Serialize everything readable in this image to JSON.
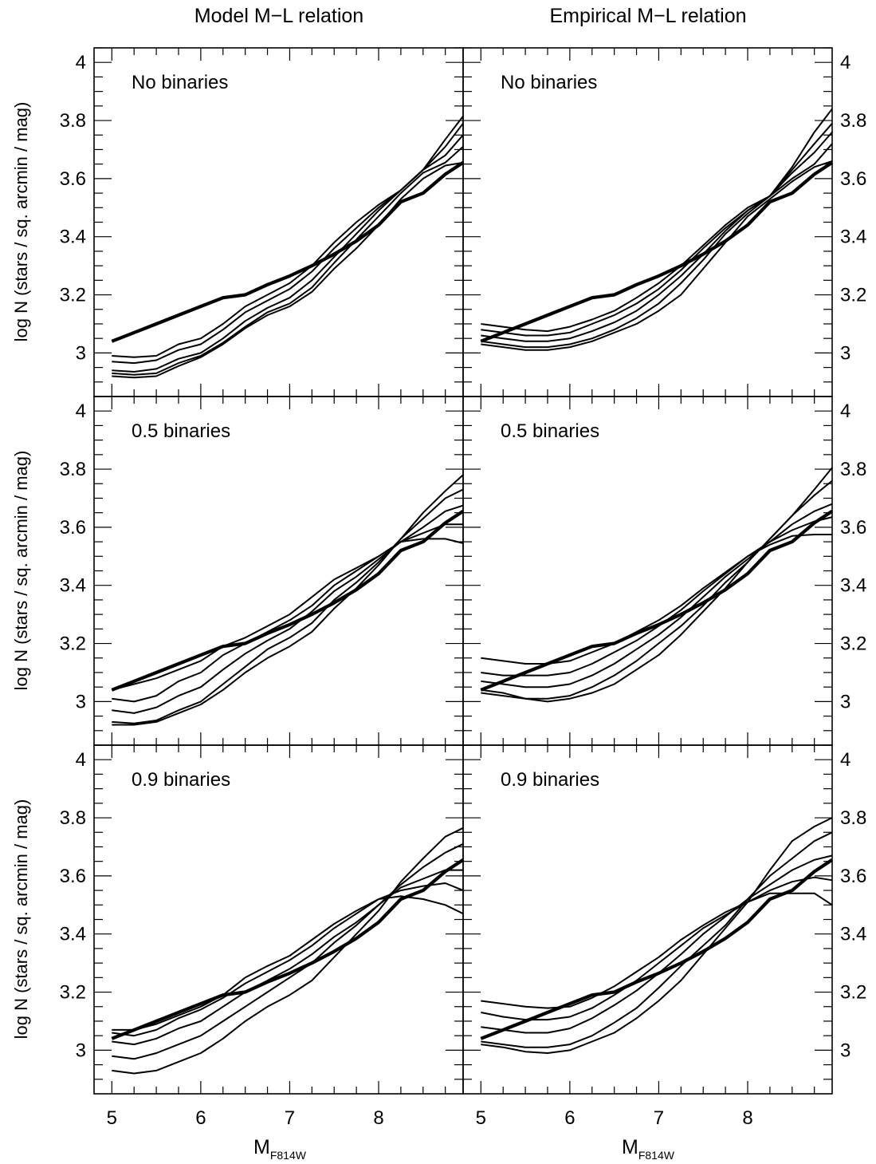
{
  "figure": {
    "column_titles": [
      "Model M−L relation",
      "Empirical M−L relation"
    ],
    "row_labels": [
      "No binaries",
      "0.5 binaries",
      "0.9 binaries"
    ],
    "ylabel": "log N (stars / sq. arcmin / mag)",
    "xlabel": {
      "main": "M",
      "sub": "F814W"
    }
  },
  "chart_data": [
    {
      "type": "line",
      "column": "Model M−L relation",
      "panel_label": "No binaries",
      "x": [
        5.0,
        5.25,
        5.5,
        5.75,
        6.0,
        6.25,
        6.5,
        6.75,
        7.0,
        7.25,
        7.5,
        7.75,
        8.0,
        8.25,
        8.5,
        8.75,
        8.95
      ],
      "xlim": [
        4.8,
        8.95
      ],
      "ylim": [
        2.85,
        4.05
      ],
      "xticks": [
        5,
        6,
        7,
        8
      ],
      "yticks_left": [
        "3",
        "3.2",
        "3.4",
        "3.6",
        "3.8",
        "4"
      ],
      "yticks_right": [],
      "observed": [
        3.04,
        3.07,
        3.1,
        3.13,
        3.16,
        3.19,
        3.2,
        3.235,
        3.265,
        3.3,
        3.34,
        3.385,
        3.44,
        3.52,
        3.55,
        3.615,
        3.655
      ],
      "models": [
        [
          2.99,
          2.985,
          2.99,
          3.03,
          3.05,
          3.1,
          3.16,
          3.2,
          3.24,
          3.3,
          3.38,
          3.45,
          3.51,
          3.56,
          3.63,
          3.735,
          3.815
        ],
        [
          2.97,
          2.965,
          2.975,
          3.01,
          3.03,
          3.08,
          3.14,
          3.18,
          3.22,
          3.28,
          3.36,
          3.43,
          3.5,
          3.56,
          3.63,
          3.71,
          3.79
        ],
        [
          2.94,
          2.935,
          2.945,
          2.98,
          3.0,
          3.05,
          3.11,
          3.155,
          3.19,
          3.25,
          3.33,
          3.41,
          3.49,
          3.56,
          3.63,
          3.68,
          3.75
        ],
        [
          2.93,
          2.925,
          2.93,
          2.965,
          2.99,
          3.035,
          3.09,
          3.14,
          3.17,
          3.225,
          3.31,
          3.39,
          3.47,
          3.55,
          3.62,
          3.655,
          3.71
        ],
        [
          2.92,
          2.915,
          2.92,
          2.955,
          2.985,
          3.03,
          3.085,
          3.13,
          3.16,
          3.21,
          3.29,
          3.36,
          3.44,
          3.53,
          3.6,
          3.645,
          3.655
        ]
      ]
    },
    {
      "type": "line",
      "column": "Empirical M−L relation",
      "panel_label": "No binaries",
      "x": [
        5.0,
        5.25,
        5.5,
        5.75,
        6.0,
        6.25,
        6.5,
        6.75,
        7.0,
        7.25,
        7.5,
        7.75,
        8.0,
        8.25,
        8.5,
        8.75,
        8.95
      ],
      "xlim": [
        4.8,
        8.95
      ],
      "ylim": [
        2.85,
        4.05
      ],
      "xticks": [
        5,
        6,
        7,
        8
      ],
      "yticks_left": [],
      "yticks_right": [
        "3",
        "3.2",
        "3.4",
        "3.6",
        "3.8",
        "4"
      ],
      "observed": [
        3.04,
        3.07,
        3.1,
        3.13,
        3.16,
        3.19,
        3.2,
        3.235,
        3.265,
        3.3,
        3.34,
        3.385,
        3.44,
        3.52,
        3.55,
        3.615,
        3.655
      ],
      "models": [
        [
          3.1,
          3.09,
          3.08,
          3.075,
          3.09,
          3.115,
          3.145,
          3.19,
          3.24,
          3.3,
          3.37,
          3.44,
          3.5,
          3.54,
          3.64,
          3.76,
          3.84
        ],
        [
          3.08,
          3.07,
          3.06,
          3.06,
          3.07,
          3.1,
          3.13,
          3.17,
          3.22,
          3.285,
          3.36,
          3.43,
          3.49,
          3.54,
          3.63,
          3.72,
          3.79
        ],
        [
          3.06,
          3.05,
          3.04,
          3.04,
          3.05,
          3.075,
          3.105,
          3.145,
          3.2,
          3.265,
          3.34,
          3.42,
          3.49,
          3.54,
          3.62,
          3.69,
          3.76
        ],
        [
          3.04,
          3.03,
          3.02,
          3.02,
          3.03,
          3.05,
          3.08,
          3.12,
          3.17,
          3.24,
          3.32,
          3.41,
          3.48,
          3.54,
          3.6,
          3.65,
          3.72
        ],
        [
          3.03,
          3.02,
          3.01,
          3.01,
          3.02,
          3.04,
          3.07,
          3.1,
          3.145,
          3.2,
          3.29,
          3.38,
          3.47,
          3.53,
          3.59,
          3.64,
          3.66
        ]
      ]
    },
    {
      "type": "line",
      "column": "Model M−L relation",
      "panel_label": "0.5 binaries",
      "x": [
        5.0,
        5.25,
        5.5,
        5.75,
        6.0,
        6.25,
        6.5,
        6.75,
        7.0,
        7.25,
        7.5,
        7.75,
        8.0,
        8.25,
        8.5,
        8.75,
        8.95
      ],
      "xlim": [
        4.8,
        8.95
      ],
      "ylim": [
        2.85,
        4.05
      ],
      "xticks": [
        5,
        6,
        7,
        8
      ],
      "yticks_left": [
        "3",
        "3.2",
        "3.4",
        "3.6",
        "3.8",
        "4"
      ],
      "yticks_right": [],
      "observed": [
        3.04,
        3.07,
        3.1,
        3.13,
        3.16,
        3.19,
        3.2,
        3.235,
        3.265,
        3.3,
        3.34,
        3.385,
        3.44,
        3.52,
        3.55,
        3.615,
        3.655
      ],
      "models": [
        [
          3.04,
          3.06,
          3.08,
          3.11,
          3.14,
          3.19,
          3.22,
          3.26,
          3.3,
          3.36,
          3.42,
          3.46,
          3.5,
          3.55,
          3.56,
          3.56,
          3.545
        ],
        [
          3.01,
          3.0,
          3.02,
          3.07,
          3.1,
          3.16,
          3.2,
          3.24,
          3.28,
          3.33,
          3.4,
          3.45,
          3.5,
          3.55,
          3.58,
          3.61,
          3.61
        ],
        [
          2.97,
          2.96,
          2.98,
          3.02,
          3.05,
          3.11,
          3.165,
          3.21,
          3.25,
          3.31,
          3.38,
          3.43,
          3.49,
          3.55,
          3.6,
          3.655,
          3.675
        ],
        [
          2.93,
          2.925,
          2.935,
          2.97,
          3.0,
          3.06,
          3.12,
          3.18,
          3.22,
          3.27,
          3.35,
          3.41,
          3.48,
          3.56,
          3.63,
          3.7,
          3.73
        ],
        [
          2.92,
          2.92,
          2.93,
          2.96,
          2.99,
          3.04,
          3.1,
          3.15,
          3.19,
          3.24,
          3.32,
          3.39,
          3.47,
          3.56,
          3.65,
          3.725,
          3.78
        ]
      ]
    },
    {
      "type": "line",
      "column": "Empirical M−L relation",
      "panel_label": "0.5 binaries",
      "x": [
        5.0,
        5.25,
        5.5,
        5.75,
        6.0,
        6.25,
        6.5,
        6.75,
        7.0,
        7.25,
        7.5,
        7.75,
        8.0,
        8.25,
        8.5,
        8.75,
        8.95
      ],
      "xlim": [
        4.8,
        8.95
      ],
      "ylim": [
        2.85,
        4.05
      ],
      "xticks": [
        5,
        6,
        7,
        8
      ],
      "yticks_left": [],
      "yticks_right": [
        "3",
        "3.2",
        "3.4",
        "3.6",
        "3.8",
        "4"
      ],
      "observed": [
        3.04,
        3.07,
        3.1,
        3.13,
        3.16,
        3.19,
        3.2,
        3.235,
        3.265,
        3.3,
        3.34,
        3.385,
        3.44,
        3.52,
        3.55,
        3.615,
        3.655
      ],
      "models": [
        [
          3.15,
          3.14,
          3.13,
          3.13,
          3.14,
          3.17,
          3.2,
          3.24,
          3.28,
          3.33,
          3.39,
          3.445,
          3.5,
          3.54,
          3.57,
          3.575,
          3.575
        ],
        [
          3.1,
          3.09,
          3.09,
          3.09,
          3.1,
          3.13,
          3.17,
          3.21,
          3.26,
          3.315,
          3.38,
          3.44,
          3.5,
          3.55,
          3.59,
          3.62,
          3.635
        ],
        [
          3.07,
          3.06,
          3.05,
          3.05,
          3.06,
          3.09,
          3.13,
          3.18,
          3.23,
          3.29,
          3.36,
          3.43,
          3.49,
          3.55,
          3.61,
          3.655,
          3.68
        ],
        [
          3.04,
          3.03,
          3.01,
          3.01,
          3.02,
          3.05,
          3.09,
          3.14,
          3.2,
          3.26,
          3.33,
          3.41,
          3.48,
          3.56,
          3.64,
          3.71,
          3.76
        ],
        [
          3.03,
          3.02,
          3.01,
          3.0,
          3.01,
          3.03,
          3.06,
          3.11,
          3.16,
          3.23,
          3.31,
          3.39,
          3.48,
          3.56,
          3.64,
          3.73,
          3.805
        ]
      ]
    },
    {
      "type": "line",
      "column": "Model M−L relation",
      "panel_label": "0.9 binaries",
      "x": [
        5.0,
        5.25,
        5.5,
        5.75,
        6.0,
        6.25,
        6.5,
        6.75,
        7.0,
        7.25,
        7.5,
        7.75,
        8.0,
        8.25,
        8.5,
        8.75,
        8.95
      ],
      "xlim": [
        4.8,
        8.95
      ],
      "ylim": [
        2.85,
        4.05
      ],
      "xticks": [
        5,
        6,
        7,
        8
      ],
      "yticks_left": [
        "3",
        "3.2",
        "3.4",
        "3.6",
        "3.8",
        "4"
      ],
      "yticks_right": [],
      "observed": [
        3.04,
        3.07,
        3.1,
        3.13,
        3.16,
        3.19,
        3.2,
        3.235,
        3.265,
        3.3,
        3.34,
        3.385,
        3.44,
        3.52,
        3.55,
        3.615,
        3.655
      ],
      "models": [
        [
          3.07,
          3.07,
          3.09,
          3.12,
          3.15,
          3.19,
          3.25,
          3.29,
          3.325,
          3.38,
          3.435,
          3.48,
          3.52,
          3.53,
          3.52,
          3.5,
          3.47
        ],
        [
          3.06,
          3.05,
          3.07,
          3.11,
          3.14,
          3.18,
          3.23,
          3.27,
          3.31,
          3.36,
          3.42,
          3.47,
          3.52,
          3.55,
          3.565,
          3.575,
          3.55
        ],
        [
          3.03,
          3.02,
          3.04,
          3.075,
          3.1,
          3.15,
          3.2,
          3.24,
          3.28,
          3.33,
          3.39,
          3.44,
          3.5,
          3.56,
          3.59,
          3.62,
          3.62
        ],
        [
          2.98,
          2.97,
          2.99,
          3.02,
          3.05,
          3.1,
          3.15,
          3.2,
          3.25,
          3.3,
          3.37,
          3.43,
          3.5,
          3.57,
          3.63,
          3.68,
          3.71
        ],
        [
          2.93,
          2.92,
          2.93,
          2.96,
          2.99,
          3.04,
          3.1,
          3.15,
          3.19,
          3.24,
          3.32,
          3.4,
          3.48,
          3.58,
          3.66,
          3.735,
          3.765
        ]
      ]
    },
    {
      "type": "line",
      "column": "Empirical M−L relation",
      "panel_label": "0.9 binaries",
      "x": [
        5.0,
        5.25,
        5.5,
        5.75,
        6.0,
        6.25,
        6.5,
        6.75,
        7.0,
        7.25,
        7.5,
        7.75,
        8.0,
        8.25,
        8.5,
        8.75,
        8.95
      ],
      "xlim": [
        4.8,
        8.95
      ],
      "ylim": [
        2.85,
        4.05
      ],
      "xticks": [
        5,
        6,
        7,
        8
      ],
      "yticks_left": [],
      "yticks_right": [
        "3",
        "3.2",
        "3.4",
        "3.6",
        "3.8",
        "4"
      ],
      "observed": [
        3.04,
        3.07,
        3.1,
        3.13,
        3.16,
        3.19,
        3.2,
        3.235,
        3.265,
        3.3,
        3.34,
        3.385,
        3.44,
        3.52,
        3.55,
        3.615,
        3.655
      ],
      "models": [
        [
          3.17,
          3.16,
          3.15,
          3.145,
          3.15,
          3.18,
          3.22,
          3.27,
          3.32,
          3.38,
          3.43,
          3.475,
          3.51,
          3.54,
          3.54,
          3.54,
          3.5
        ],
        [
          3.13,
          3.115,
          3.105,
          3.105,
          3.115,
          3.145,
          3.19,
          3.24,
          3.3,
          3.36,
          3.42,
          3.465,
          3.51,
          3.55,
          3.58,
          3.595,
          3.585
        ],
        [
          3.08,
          3.07,
          3.06,
          3.06,
          3.075,
          3.11,
          3.155,
          3.205,
          3.265,
          3.33,
          3.4,
          3.46,
          3.52,
          3.57,
          3.62,
          3.655,
          3.67
        ],
        [
          3.03,
          3.02,
          3.01,
          3.01,
          3.02,
          3.05,
          3.095,
          3.145,
          3.215,
          3.29,
          3.36,
          3.43,
          3.52,
          3.6,
          3.66,
          3.72,
          3.75
        ],
        [
          3.02,
          3.01,
          2.995,
          2.99,
          3.0,
          3.03,
          3.06,
          3.11,
          3.17,
          3.24,
          3.33,
          3.42,
          3.51,
          3.62,
          3.72,
          3.77,
          3.8
        ]
      ]
    }
  ]
}
